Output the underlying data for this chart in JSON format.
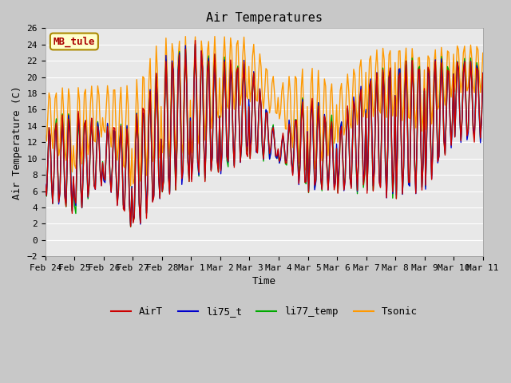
{
  "title": "Air Temperatures",
  "xlabel": "Time",
  "ylabel": "Air Temperature (C)",
  "ylim": [
    -2,
    26
  ],
  "yticks": [
    -2,
    0,
    2,
    4,
    6,
    8,
    10,
    12,
    14,
    16,
    18,
    20,
    22,
    24,
    26
  ],
  "bg_color": "#e8e8e8",
  "legend_labels": [
    "AirT",
    "li75_t",
    "li77_temp",
    "Tsonic"
  ],
  "legend_colors": [
    "#cc0000",
    "#0000cc",
    "#00aa00",
    "#ff9900"
  ],
  "annotation_text": "MB_tule",
  "annotation_color": "#aa0000",
  "annotation_bg": "#ffffcc",
  "annotation_border": "#aa8800",
  "x_tick_labels": [
    "Feb 24",
    "Feb 25",
    "Feb 26",
    "Feb 27",
    "Feb 28",
    "Mar 1",
    "Mar 2",
    "Mar 3",
    "Mar 4",
    "Mar 5",
    "Mar 6",
    "Mar 7",
    "Mar 8",
    "Mar 9",
    "Mar 10",
    "Mar 11"
  ],
  "font_family": "monospace",
  "title_fontsize": 11,
  "axis_fontsize": 9,
  "tick_fontsize": 8,
  "linewidth": 1.0
}
